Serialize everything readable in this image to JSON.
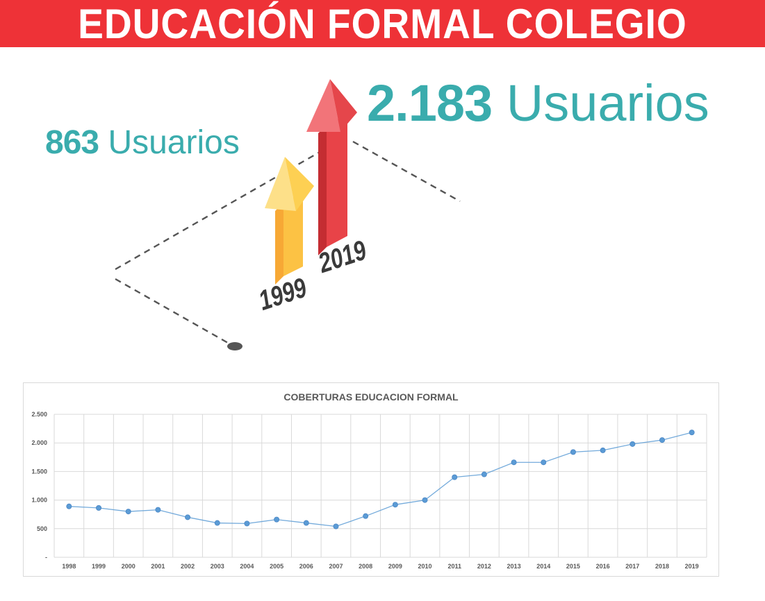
{
  "banner": {
    "title": "EDUCACIÓN FORMAL COLEGIO"
  },
  "colors": {
    "banner": "#ee3237",
    "teal": "#3aacad",
    "series": "#5b9bd5",
    "arrow_red": "#e84348",
    "arrow_yellow": "#fcc244"
  },
  "infographic": {
    "stat_2019": {
      "number": "2.183",
      "label": "Usuarios"
    },
    "stat_1999": {
      "number": "863",
      "label": "Usuarios"
    },
    "year_1999": "1999",
    "year_2019": "2019",
    "icons": [
      "arrow-up-yellow",
      "arrow-up-red"
    ]
  },
  "chart_data": {
    "type": "line",
    "title": "COBERTURAS EDUCACION FORMAL",
    "categories": [
      "1998",
      "1999",
      "2000",
      "2001",
      "2002",
      "2003",
      "2004",
      "2005",
      "2006",
      "2007",
      "2008",
      "2009",
      "2010",
      "2011",
      "2012",
      "2013",
      "2014",
      "2015",
      "2016",
      "2017",
      "2018",
      "2019"
    ],
    "values": [
      890,
      863,
      800,
      830,
      700,
      600,
      590,
      660,
      600,
      540,
      720,
      920,
      1000,
      1400,
      1450,
      1660,
      1660,
      1840,
      1870,
      1980,
      2050,
      2183
    ],
    "y_ticks": [
      "-",
      "500",
      "1.000",
      "1.500",
      "2.000",
      "2.500"
    ],
    "ylim": [
      0,
      2500
    ],
    "grid": true,
    "legend": "none"
  }
}
